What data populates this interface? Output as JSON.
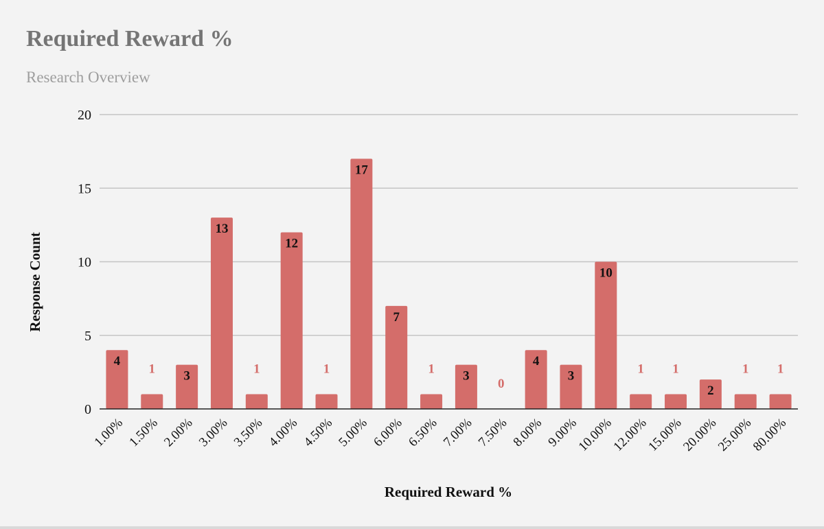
{
  "chart_data": {
    "type": "bar",
    "title": "Required Reward %",
    "subtitle": "Research Overview",
    "xlabel": "Required Reward %",
    "ylabel": "Response Count",
    "ylim": [
      0,
      20
    ],
    "yticks": [
      0,
      5,
      10,
      15,
      20
    ],
    "grid": true,
    "legend": "none",
    "bar_color": "#d46d6a",
    "categories": [
      "1.00%",
      "1.50%",
      "2.00%",
      "3.00%",
      "3.50%",
      "4.00%",
      "4.50%",
      "5.00%",
      "6.00%",
      "6.50%",
      "7.00%",
      "7.50%",
      "8.00%",
      "9.00%",
      "10.00%",
      "12.00%",
      "15.00%",
      "20.00%",
      "25.00%",
      "80.00%"
    ],
    "values": [
      4,
      1,
      3,
      13,
      1,
      12,
      1,
      17,
      7,
      1,
      3,
      0,
      4,
      3,
      10,
      1,
      1,
      2,
      1,
      1
    ]
  }
}
